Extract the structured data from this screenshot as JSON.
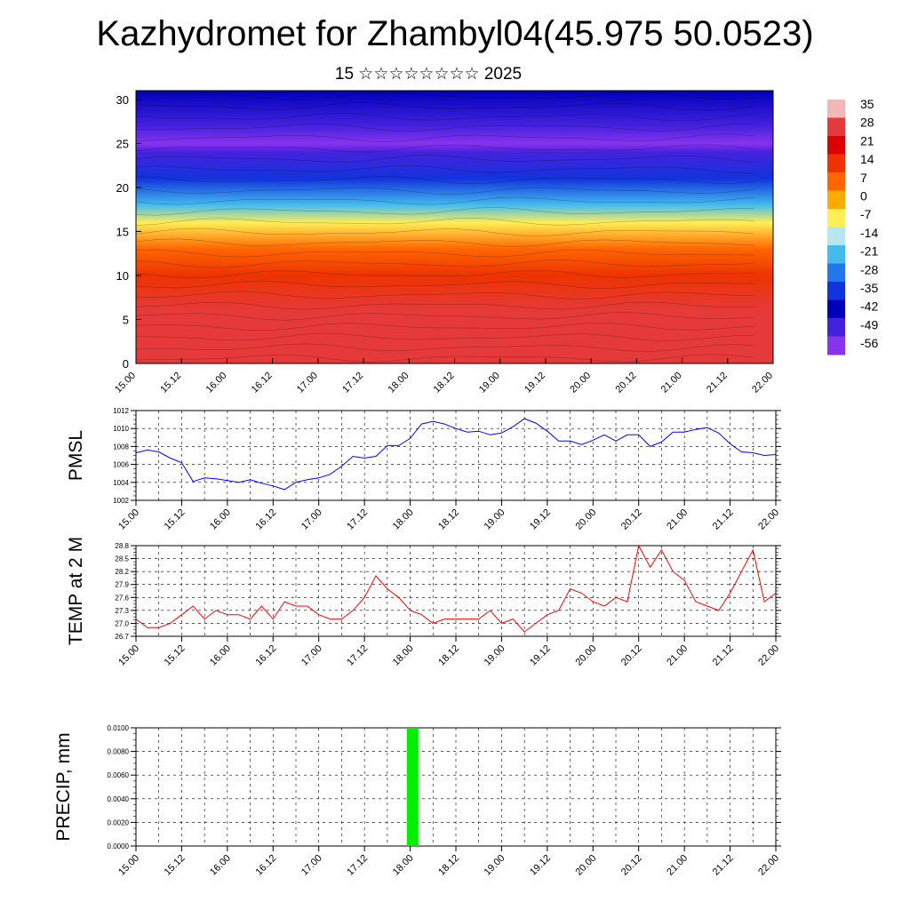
{
  "page": {
    "title": "Kazhydromet for Zhambyl04(45.975 50.0523)",
    "subtitle": "15 ☆☆☆☆☆☆☆☆ 2025"
  },
  "colors": {
    "pmsl_line": "#0000ff",
    "temp_line": "#ff0000",
    "precip_bar": "#00ee00",
    "grid": "#000000"
  },
  "chart_data": [
    {
      "type": "heatmap",
      "name": "cross-section",
      "x_ticks": [
        "15.00",
        "15.12",
        "16.00",
        "16.12",
        "17.00",
        "17.12",
        "18.00",
        "18.12",
        "19.00",
        "19.12",
        "20.00",
        "20.12",
        "21.00",
        "21.12",
        "22.00"
      ],
      "y_ticks": [
        "0",
        "5",
        "10",
        "15",
        "20",
        "25",
        "30"
      ],
      "ylim": [
        0,
        31
      ],
      "colorbar_labels": [
        "35",
        "28",
        "21",
        "14",
        "7",
        "0",
        "-7",
        "-14",
        "-21",
        "-28",
        "-35",
        "-42",
        "-49",
        "-56"
      ],
      "colorbar_colors": [
        "#f2b8b8",
        "#e63a3a",
        "#dd0000",
        "#ee3300",
        "#ff6600",
        "#ffaa00",
        "#ffee55",
        "#b8e6f0",
        "#44bbee",
        "#2277ee",
        "#1133dd",
        "#0000bb",
        "#4422dd",
        "#8833ee"
      ],
      "color_profile": [
        {
          "y": 0,
          "value": 30
        },
        {
          "y": 6,
          "value": 25
        },
        {
          "y": 10,
          "value": 14
        },
        {
          "y": 13,
          "value": 5
        },
        {
          "y": 16,
          "value": -7
        },
        {
          "y": 18,
          "value": -20
        },
        {
          "y": 21,
          "value": -35
        },
        {
          "y": 24,
          "value": -50
        },
        {
          "y": 25,
          "value": -56
        },
        {
          "y": 27,
          "value": -50
        },
        {
          "y": 31,
          "value": -45
        }
      ]
    },
    {
      "type": "line",
      "name": "pmsl",
      "ylabel": "PMSL",
      "ylim": [
        1002,
        1012
      ],
      "y_ticks": [
        "1002",
        "1004",
        "1006",
        "1008",
        "1010",
        "1012"
      ],
      "x_ticks": [
        "15.00",
        "15.12",
        "16.00",
        "16.12",
        "17.00",
        "17.12",
        "18.00",
        "18.12",
        "19.00",
        "19.12",
        "20.00",
        "20.12",
        "21.00",
        "21.12",
        "22.00"
      ],
      "x": [
        0,
        3,
        6,
        9,
        12,
        15,
        18,
        21,
        24,
        27,
        30,
        33,
        36,
        39,
        42,
        45,
        48,
        51,
        54,
        57,
        60,
        63,
        66,
        69,
        72,
        75,
        78,
        81,
        84,
        87,
        90,
        93,
        96,
        99,
        102,
        105,
        108,
        111,
        114,
        117,
        120,
        123,
        126,
        129,
        132,
        135,
        138,
        141,
        144,
        147,
        150,
        153,
        156,
        159,
        162,
        165,
        168
      ],
      "values": [
        1007.3,
        1007.6,
        1007.4,
        1006.7,
        1006.2,
        1004.1,
        1004.5,
        1004.4,
        1004.2,
        1004.0,
        1004.3,
        1003.9,
        1003.6,
        1003.2,
        1004.0,
        1004.3,
        1004.5,
        1004.9,
        1005.8,
        1006.9,
        1006.7,
        1006.9,
        1008.1,
        1008.1,
        1008.9,
        1010.5,
        1010.8,
        1010.5,
        1010.0,
        1009.6,
        1009.7,
        1009.3,
        1009.5,
        1010.2,
        1011.1,
        1010.6,
        1009.7,
        1008.6,
        1008.6,
        1008.2,
        1008.7,
        1009.3,
        1008.6,
        1009.3,
        1009.3,
        1008.0,
        1008.5,
        1009.6,
        1009.6,
        1009.9,
        1010.1,
        1009.5,
        1008.3,
        1007.4,
        1007.3,
        1007.0,
        1007.1
      ]
    },
    {
      "type": "line",
      "name": "temp",
      "ylabel": "TEMP at 2 M",
      "ylim": [
        26.7,
        28.8
      ],
      "y_ticks": [
        "26.7",
        "27.0",
        "27.3",
        "27.6",
        "27.9",
        "28.2",
        "28.5",
        "28.8"
      ],
      "x_ticks": [
        "15.00",
        "15.12",
        "16.00",
        "16.12",
        "17.00",
        "17.12",
        "18.00",
        "18.12",
        "19.00",
        "19.12",
        "20.00",
        "20.12",
        "21.00",
        "21.12",
        "22.00"
      ],
      "x": [
        0,
        3,
        6,
        9,
        12,
        15,
        18,
        21,
        24,
        27,
        30,
        33,
        36,
        39,
        42,
        45,
        48,
        51,
        54,
        57,
        60,
        63,
        66,
        69,
        72,
        75,
        78,
        81,
        84,
        87,
        90,
        93,
        96,
        99,
        102,
        105,
        108,
        111,
        114,
        117,
        120,
        123,
        126,
        129,
        132,
        135,
        138,
        141,
        144,
        147,
        150,
        153,
        156,
        159,
        162,
        165,
        168
      ],
      "values": [
        27.1,
        26.9,
        26.9,
        27.0,
        27.2,
        27.4,
        27.1,
        27.3,
        27.2,
        27.2,
        27.1,
        27.4,
        27.1,
        27.5,
        27.4,
        27.4,
        27.2,
        27.1,
        27.1,
        27.3,
        27.6,
        28.1,
        27.8,
        27.6,
        27.3,
        27.2,
        27.0,
        27.1,
        27.1,
        27.1,
        27.1,
        27.3,
        27.0,
        27.1,
        26.8,
        27.0,
        27.2,
        27.3,
        27.8,
        27.7,
        27.5,
        27.4,
        27.6,
        27.5,
        28.8,
        28.3,
        28.7,
        28.2,
        28.0,
        27.5,
        27.4,
        27.3,
        27.7,
        28.2,
        28.7,
        27.5,
        27.7
      ]
    },
    {
      "type": "bar",
      "name": "precip",
      "ylabel": "PRECIP, mm",
      "ylim": [
        0,
        0.01
      ],
      "y_ticks": [
        "0.0000",
        "0.0020",
        "0.0040",
        "0.0060",
        "0.0080",
        "0.0100"
      ],
      "x_ticks": [
        "15.00",
        "15.12",
        "16.00",
        "16.12",
        "17.00",
        "17.12",
        "18.00",
        "18.12",
        "19.00",
        "19.12",
        "20.00",
        "20.12",
        "21.00",
        "21.12",
        "22.00"
      ],
      "x": [
        71
      ],
      "values": [
        0.01
      ]
    }
  ]
}
